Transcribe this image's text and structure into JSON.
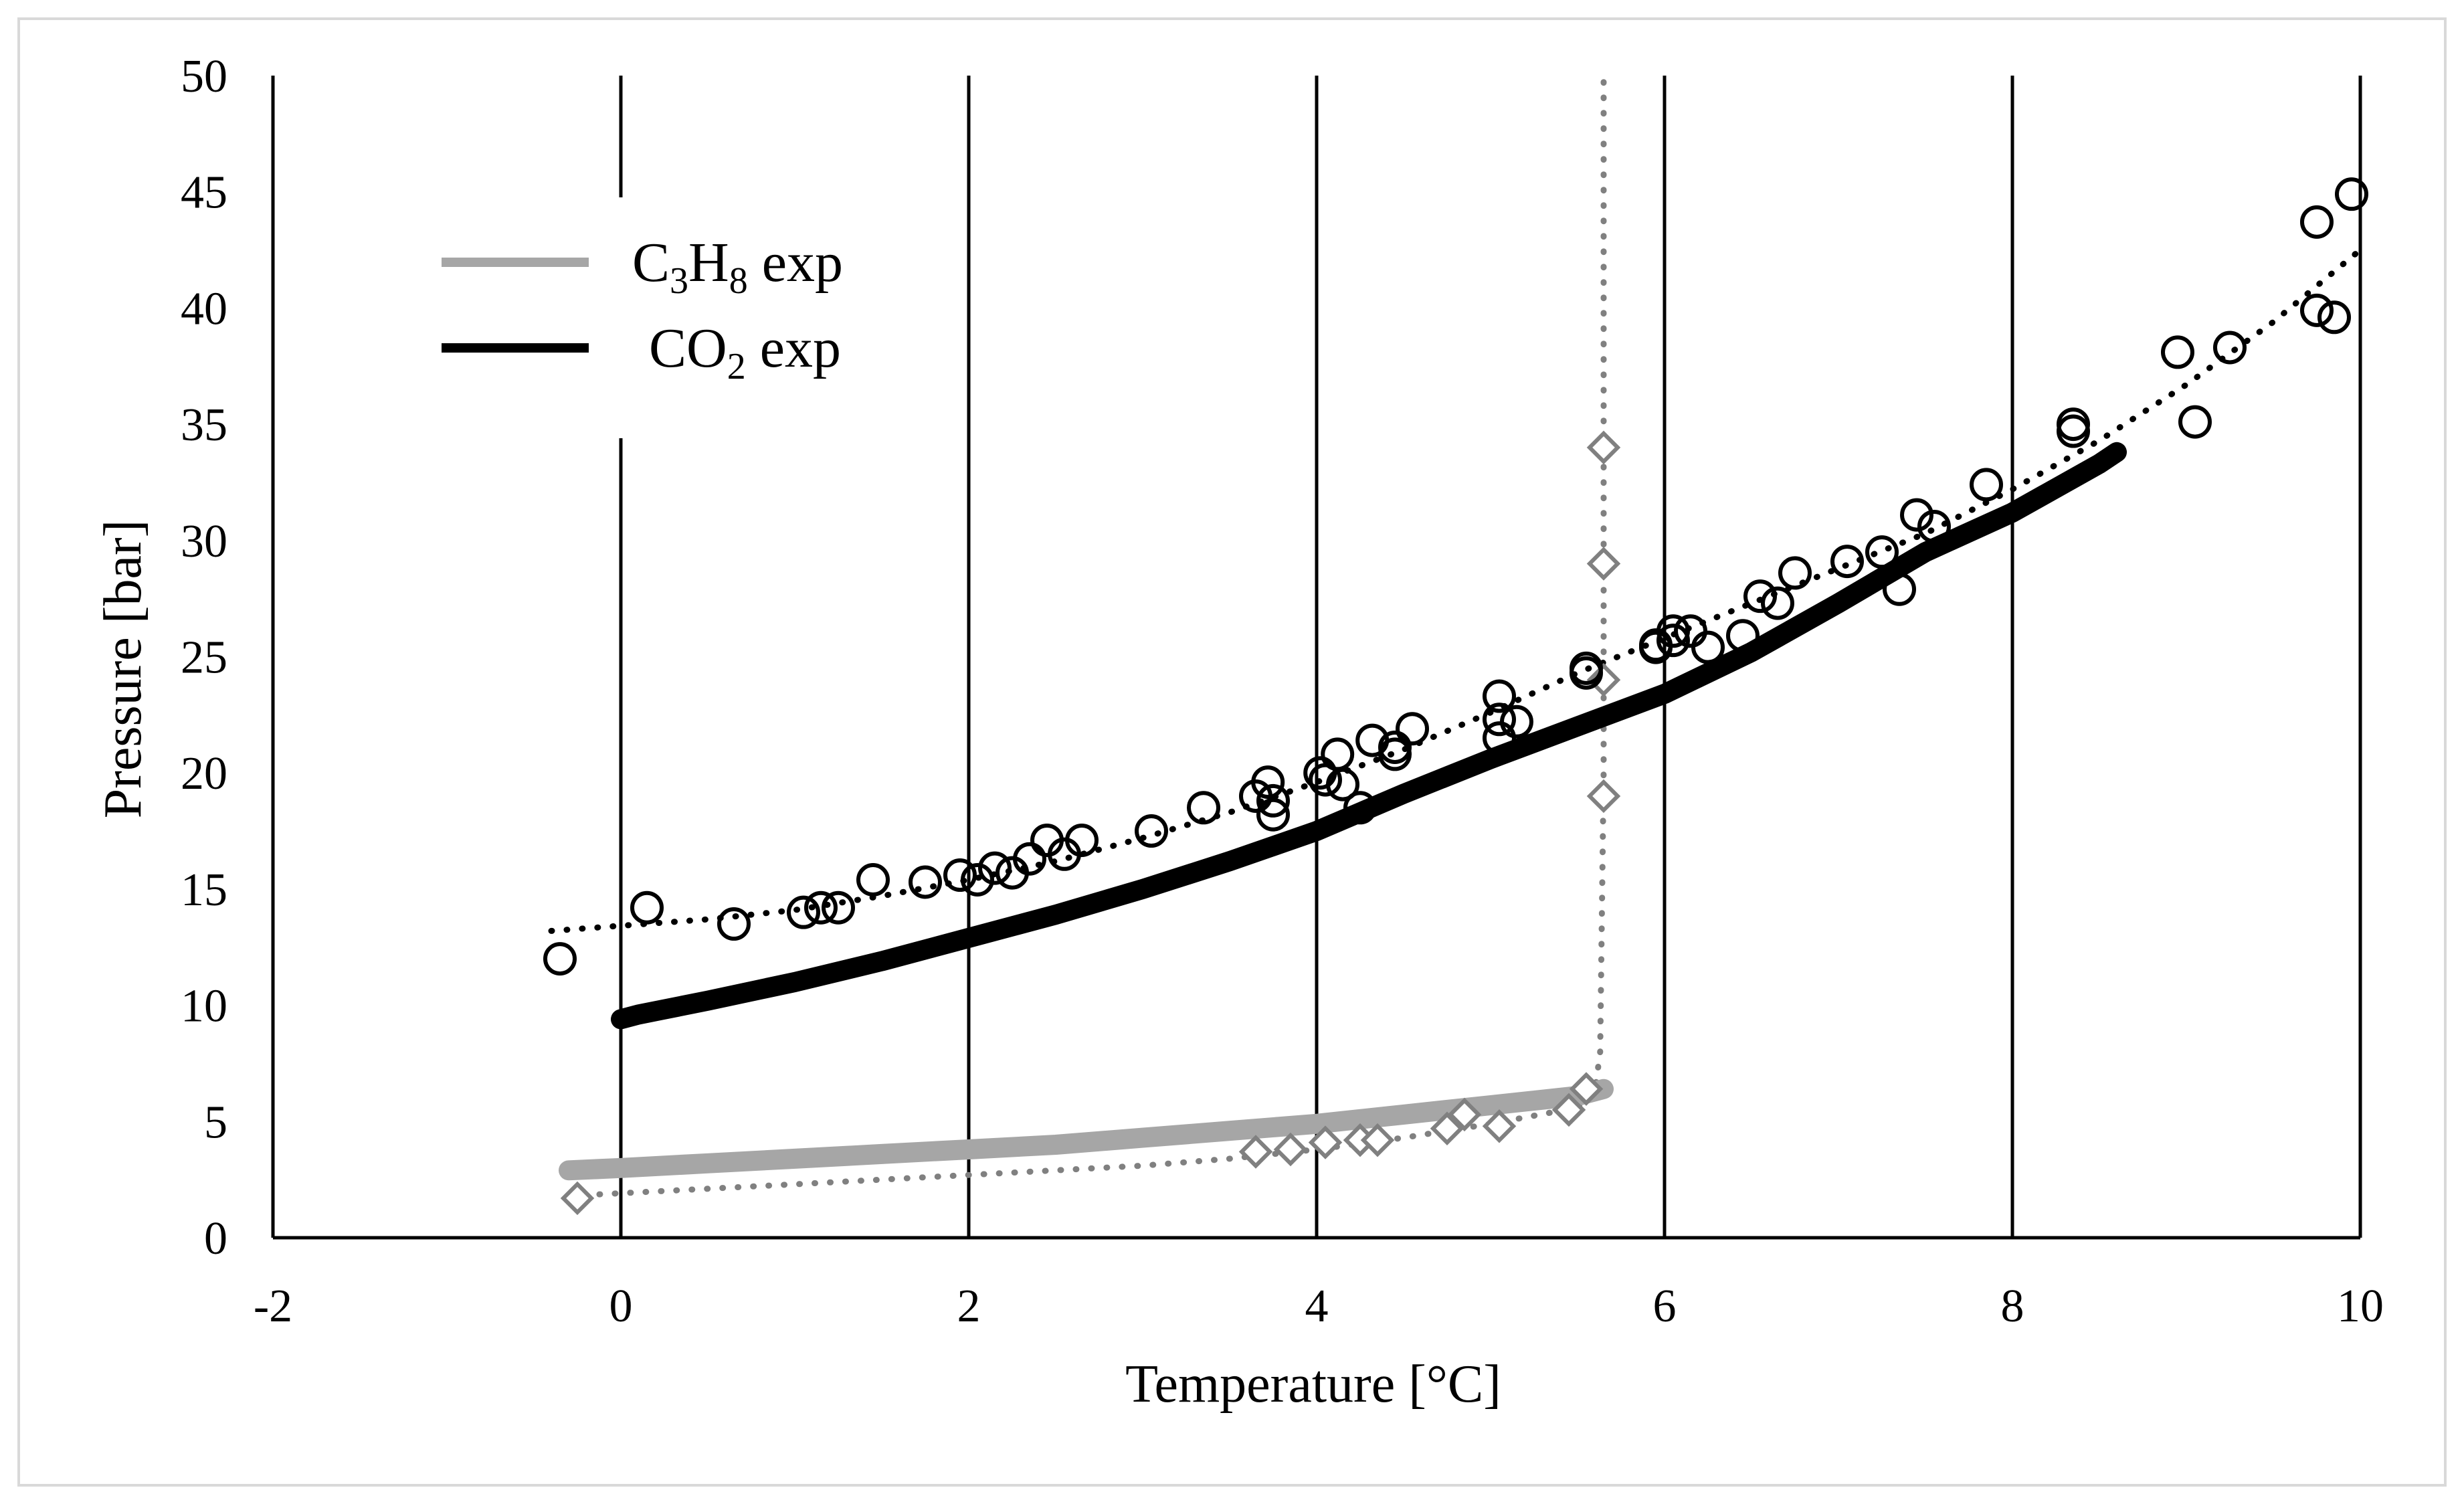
{
  "chart_data": {
    "type": "scatter",
    "title": "",
    "xlabel": "Temperature [°C]",
    "ylabel": "Pressure [bar]",
    "xlim": [
      -2,
      10
    ],
    "ylim": [
      0,
      50
    ],
    "x_ticks": [
      -2,
      0,
      2,
      4,
      6,
      8,
      10
    ],
    "y_ticks": [
      0,
      5,
      10,
      15,
      20,
      25,
      30,
      35,
      40,
      45,
      50
    ],
    "grid": "vertical",
    "legend_position": "top-left",
    "legend": [
      {
        "base": "C",
        "sub1": "3",
        "mid": "H",
        "sub2": "8",
        "suffix": " exp",
        "color": "#a6a6a6"
      },
      {
        "base": "CO",
        "sub1": "2",
        "mid": "",
        "sub2": "",
        "suffix": " exp",
        "color": "#000000"
      }
    ],
    "series": [
      {
        "style": "thick-line",
        "color": "#a6a6a6",
        "x": [
          -0.3,
          0.0,
          0.5,
          1.0,
          1.5,
          2.0,
          2.5,
          3.0,
          3.5,
          4.0,
          4.5,
          5.0,
          5.5,
          5.65
        ],
        "y": [
          2.9,
          3.0,
          3.2,
          3.4,
          3.6,
          3.8,
          4.0,
          4.3,
          4.6,
          4.9,
          5.3,
          5.7,
          6.1,
          6.4
        ]
      },
      {
        "style": "thick-line",
        "color": "#000000",
        "x": [
          0.0,
          0.1,
          0.5,
          1.0,
          1.5,
          2.0,
          2.5,
          3.0,
          3.5,
          4.0,
          4.5,
          5.0,
          5.5,
          6.0,
          6.5,
          7.0,
          7.5,
          8.0,
          8.5,
          8.6
        ],
        "y": [
          9.4,
          9.6,
          10.2,
          11.0,
          11.9,
          12.9,
          13.9,
          15.0,
          16.2,
          17.5,
          19.1,
          20.6,
          22.0,
          23.4,
          25.2,
          27.3,
          29.5,
          31.2,
          33.3,
          33.8
        ]
      },
      {
        "style": "circle-markers",
        "color": "#000000",
        "x": [
          -0.35,
          0.15,
          0.65,
          1.05,
          1.15,
          1.25,
          1.45,
          1.75,
          1.95,
          2.05,
          2.15,
          2.25,
          2.35,
          2.45,
          2.55,
          2.65,
          3.05,
          3.35,
          3.65,
          3.72,
          3.75,
          3.75,
          4.02,
          4.05,
          4.12,
          4.15,
          4.25,
          4.32,
          4.45,
          4.45,
          4.55,
          5.05,
          5.05,
          5.05,
          5.15,
          5.55,
          5.55,
          5.95,
          5.95,
          6.05,
          6.05,
          6.15,
          6.25,
          6.45,
          6.55,
          6.65,
          6.75,
          7.05,
          7.25,
          7.35,
          7.45,
          7.55,
          7.85,
          8.35,
          8.35,
          8.95,
          9.05,
          9.25,
          9.75,
          9.75,
          9.85,
          9.95
        ],
        "y": [
          12.0,
          14.2,
          13.5,
          14.0,
          14.2,
          14.2,
          15.4,
          15.3,
          15.6,
          15.4,
          15.9,
          15.7,
          16.3,
          17.1,
          16.5,
          17.1,
          17.5,
          18.5,
          19.0,
          19.6,
          18.2,
          18.8,
          20.0,
          19.7,
          20.8,
          19.5,
          18.5,
          21.4,
          20.8,
          21.1,
          21.9,
          23.3,
          22.3,
          21.5,
          22.2,
          24.5,
          24.3,
          25.4,
          25.5,
          26.1,
          25.7,
          26.1,
          25.4,
          25.9,
          27.6,
          27.3,
          28.6,
          29.1,
          29.5,
          27.9,
          31.1,
          30.6,
          32.4,
          35.0,
          34.7,
          38.1,
          35.1,
          38.3,
          43.7,
          39.9,
          39.6,
          44.9
        ]
      },
      {
        "style": "dotted-line",
        "color": "#000000",
        "x": [
          -0.4,
          0.5,
          1.0,
          1.5,
          2.0,
          2.5,
          3.0,
          3.5,
          4.0,
          4.5,
          5.0,
          5.5,
          6.0,
          6.5,
          7.0,
          7.5,
          8.0,
          8.5,
          9.0,
          9.5,
          10.0
        ],
        "y": [
          13.2,
          13.7,
          14.1,
          14.7,
          15.4,
          16.2,
          17.2,
          18.3,
          19.6,
          21.0,
          22.6,
          24.3,
          25.8,
          27.3,
          28.8,
          30.3,
          32.2,
          34.3,
          36.7,
          39.4,
          42.5
        ]
      },
      {
        "style": "diamond-markers",
        "color": "#808080",
        "x": [
          -0.25,
          3.65,
          3.85,
          4.05,
          4.25,
          4.35,
          4.75,
          4.85,
          5.05,
          5.45,
          5.55,
          5.65,
          5.65,
          5.65,
          5.65
        ],
        "y": [
          1.7,
          3.7,
          3.8,
          4.1,
          4.2,
          4.2,
          4.7,
          5.3,
          4.8,
          5.5,
          6.4,
          19.0,
          24.0,
          29.0,
          34.0
        ]
      },
      {
        "style": "dotted-line",
        "color": "#808080",
        "x": [
          -0.3,
          1.0,
          2.0,
          3.0,
          3.5,
          4.0,
          4.5,
          5.0,
          5.5,
          5.6,
          5.63,
          5.65,
          5.65,
          5.65
        ],
        "y": [
          1.8,
          2.3,
          2.7,
          3.1,
          3.4,
          3.8,
          4.3,
          4.9,
          5.6,
          6.3,
          8.0,
          20.0,
          35.0,
          50.0
        ]
      }
    ]
  }
}
